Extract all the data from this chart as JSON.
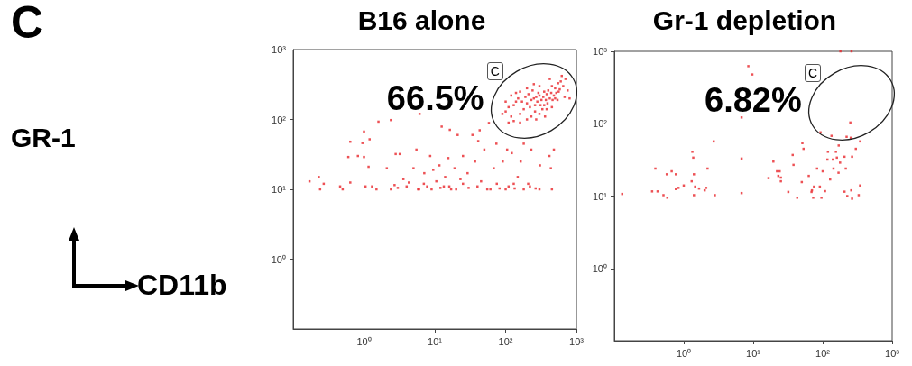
{
  "chart_data": [
    {
      "type": "scatter",
      "title": "B16 alone",
      "xlabel": "CD11b",
      "ylabel": "GR-1",
      "marker": "square",
      "log": "xy",
      "grid": false,
      "color": "#e8262a",
      "annotations": [
        "C",
        {
          "text": "C",
          "x": 71,
          "y": 490
        },
        "66.5%"
      ],
      "xlim": [
        0.1,
        1000
      ],
      "ylim": [
        0.1,
        1000
      ],
      "xticks": [
        {
          "value": 1,
          "label": "10⁰"
        },
        {
          "value": 10,
          "label": "10¹"
        },
        {
          "value": 100,
          "label": "10²"
        },
        {
          "value": 1000,
          "label": "10³"
        }
      ],
      "yticks": [
        {
          "value": 1,
          "label": "10⁰"
        },
        {
          "value": 10,
          "label": "10¹"
        },
        {
          "value": 100,
          "label": "10²"
        },
        {
          "value": 1000,
          "label": "10³"
        }
      ],
      "x": [
        250,
        300,
        350,
        400,
        200,
        220,
        280,
        320,
        380,
        450,
        500,
        550,
        600,
        180,
        160,
        150,
        130,
        120,
        260,
        300,
        350,
        420,
        480,
        520,
        240,
        210,
        190,
        170,
        140,
        110,
        100,
        230,
        270,
        330,
        390,
        460,
        560,
        650,
        700,
        620,
        420,
        300,
        250,
        200,
        160,
        140,
        120,
        290,
        340,
        370,
        440,
        500,
        580,
        260,
        310,
        360,
        200,
        160,
        130,
        110,
        90,
        100,
        380,
        450,
        540,
        750,
        800,
        680,
        230,
        270,
        0.17,
        0.23,
        0.24,
        0.27,
        0.46,
        0.5,
        0.64,
        0.6,
        0.64,
        0.82,
        0.95,
        1,
        1,
        1.16,
        1.2,
        1.05,
        1.5,
        1.6,
        2.1,
        2.4,
        2.4,
        2.8,
        3.2,
        3.6,
        4.3,
        5,
        5.5,
        5.8,
        6.1,
        7.1,
        7.8,
        8.6,
        9.5,
        10.5,
        11.6,
        12.5,
        13.4,
        14,
        15.5,
        16.3,
        17,
        19,
        21,
        23,
        25,
        29,
        34,
        37,
        41,
        43,
        45,
        50,
        58,
        61,
        68,
        74,
        82,
        91,
        105,
        110,
        122,
        134,
        148,
        163,
        180,
        208,
        230,
        265,
        305,
        415,
        450,
        480,
        435,
        3,
        4,
        6,
        7,
        9,
        12,
        16,
        20,
        25,
        30,
        40,
        55,
        75,
        100,
        130,
        180,
        220,
        300,
        1.3,
        2.7
      ],
      "values": [
        200,
        220,
        250,
        260,
        170,
        150,
        180,
        190,
        230,
        300,
        280,
        330,
        350,
        140,
        120,
        200,
        160,
        110,
        130,
        120,
        160,
        200,
        220,
        240,
        260,
        230,
        210,
        180,
        180,
        150,
        130,
        110,
        100,
        140,
        170,
        190,
        250,
        300,
        380,
        420,
        380,
        300,
        320,
        280,
        250,
        240,
        220,
        240,
        210,
        190,
        240,
        200,
        270,
        160,
        160,
        110,
        100,
        90,
        95,
        90,
        120,
        180,
        140,
        150,
        190,
        260,
        200,
        210,
        190,
        210,
        13,
        15,
        10,
        12,
        11,
        10,
        12.5,
        29,
        48,
        30,
        46,
        67,
        29,
        21,
        52,
        11,
        10,
        93,
        20,
        98,
        10,
        32,
        32,
        14,
        12.5,
        20,
        37,
        10,
        120,
        17,
        11,
        30,
        19,
        13,
        22,
        79,
        11,
        15,
        28,
        71,
        10,
        20,
        60,
        14,
        30,
        17,
        60,
        25,
        49,
        70,
        13,
        37,
        89,
        10,
        20,
        45,
        10.3,
        25,
        37,
        11,
        33,
        10.3,
        15,
        25,
        45,
        12,
        37,
        10.3,
        22,
        30,
        10,
        37,
        20,
        10.5,
        11,
        10,
        12,
        10,
        10.5,
        11,
        10,
        12,
        10.5,
        11,
        10,
        12,
        10,
        12,
        10,
        11,
        10,
        11,
        11.5
      ]
    },
    {
      "type": "scatter",
      "title": "Gr-1 depletion",
      "marker": "square",
      "log": "xy",
      "grid": false,
      "color": "#e8262a",
      "annotations": [
        {
          "text": "C",
          "x": 72,
          "y": 500
        },
        "6.82%"
      ],
      "xlim": [
        0.1,
        1000
      ],
      "ylim": [
        0.1,
        1000
      ],
      "xticks": [
        {
          "value": 1,
          "label": "10⁰"
        },
        {
          "value": 10,
          "label": "10¹"
        },
        {
          "value": 100,
          "label": "10²"
        },
        {
          "value": 1000,
          "label": "10³"
        }
      ],
      "yticks": [
        {
          "value": 1,
          "label": "10⁰"
        },
        {
          "value": 10,
          "label": "10¹"
        },
        {
          "value": 100,
          "label": "10²"
        },
        {
          "value": 1000,
          "label": "10³"
        }
      ],
      "x": [
        0.13,
        0.35,
        0.39,
        0.42,
        0.51,
        0.57,
        0.58,
        0.67,
        0.77,
        0.77,
        0.84,
        1,
        1.3,
        1.33,
        1.37,
        1.4,
        1.46,
        1.4,
        1.66,
        2,
        2.1,
        2.2,
        2.7,
        2.8,
        6.8,
        6.8,
        6.8,
        8.5,
        9.7,
        16.6,
        19.5,
        22,
        23,
        24,
        25,
        25,
        32,
        37,
        38,
        43,
        50,
        51,
        53,
        63,
        69,
        70,
        73,
        75,
        83,
        91,
        93,
        96,
        100,
        108,
        119,
        117,
        128,
        134,
        140,
        143,
        155,
        160,
        169,
        170,
        178,
        206,
        206,
        221,
        215,
        226,
        250,
        254,
        258,
        265,
        265,
        300,
        330,
        346,
        346,
        180,
        260
      ],
      "values": [
        10.7,
        11.6,
        24,
        11.6,
        10.3,
        20,
        9.5,
        22,
        20,
        12.5,
        13,
        14,
        16,
        41,
        34,
        20,
        13.5,
        10.3,
        12.7,
        12,
        13,
        24,
        57,
        10.3,
        33,
        11,
        122,
        625,
        480,
        17.7,
        30,
        22,
        19,
        22,
        18,
        16,
        11.4,
        37,
        27,
        9.5,
        15.6,
        54,
        45,
        19,
        11.4,
        12,
        9.5,
        13.5,
        24,
        13.5,
        76,
        9.5,
        22,
        11.7,
        41,
        32,
        17,
        68,
        32,
        24,
        41,
        34,
        21,
        50,
        29,
        11.5,
        35,
        66,
        24,
        10,
        104,
        64,
        12,
        9.2,
        35,
        45,
        10.3,
        57,
        14,
        1000,
        1000
      ]
    }
  ]
}
